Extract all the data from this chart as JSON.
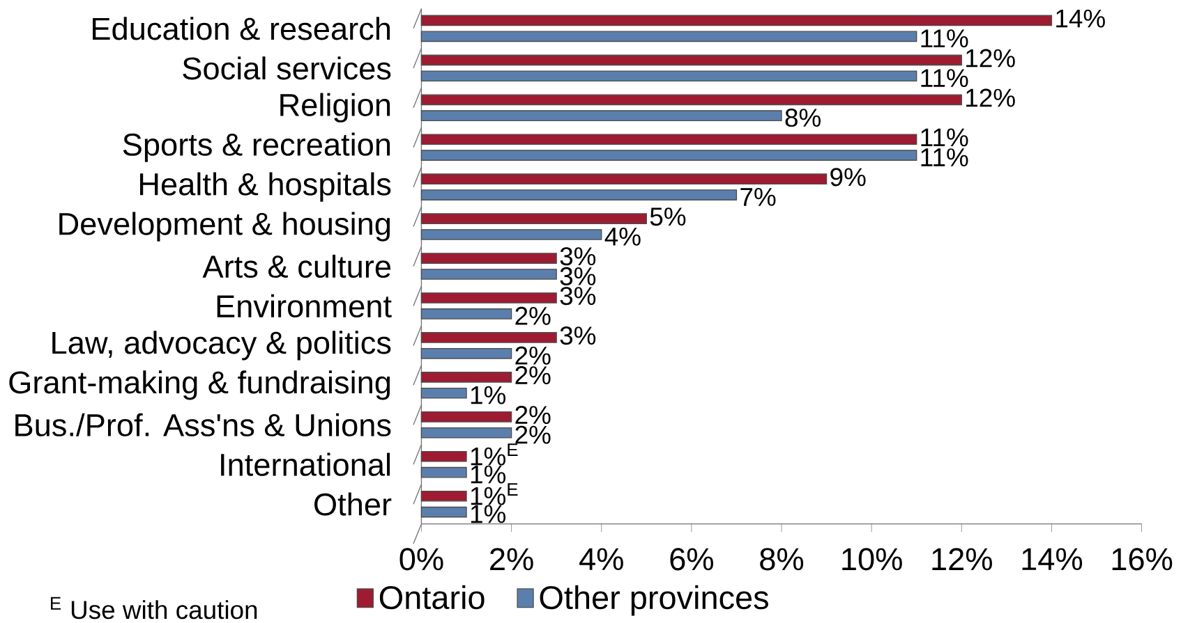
{
  "chart_data": {
    "type": "bar",
    "orientation": "horizontal",
    "categories": [
      "Education & research",
      "Social services",
      "Religion",
      "Sports & recreation",
      "Health & hospitals",
      "Development & housing",
      "Arts & culture",
      "Environment",
      "Law, advocacy & politics",
      "Grant-making & fundraising",
      "Bus./Prof. Ass'ns & Unions",
      "International",
      "Other"
    ],
    "series": [
      {
        "name": "Ontario",
        "color": "#9e1b32",
        "values": [
          14,
          12,
          12,
          11,
          9,
          5,
          3,
          3,
          3,
          2,
          2,
          1,
          1
        ],
        "value_labels": [
          "14%",
          "12%",
          "12%",
          "11%",
          "9%",
          "5%",
          "3%",
          "3%",
          "3%",
          "2%",
          "2%",
          "1%$^{E}$",
          "1%$^{E}$"
        ]
      },
      {
        "name": "Other provinces",
        "color": "#5b7fad",
        "values": [
          11,
          11,
          8,
          11,
          7,
          4,
          3,
          2,
          2,
          1,
          2,
          1,
          1
        ],
        "value_labels": [
          "11%",
          "11%",
          "8%",
          "11%",
          "7%",
          "4%",
          "3%",
          "2%",
          "2%",
          "1%",
          "2%",
          "1%",
          "1%"
        ]
      }
    ],
    "xlim": [
      0,
      16
    ],
    "xticks": [
      {
        "value": 0,
        "label": "0%"
      },
      {
        "value": 2,
        "label": "2%"
      },
      {
        "value": 4,
        "label": "4%"
      },
      {
        "value": 6,
        "label": "6%"
      },
      {
        "value": 8,
        "label": "8%"
      },
      {
        "value": 10,
        "label": "10%"
      },
      {
        "value": 12,
        "label": "12%"
      },
      {
        "value": 14,
        "label": "14%"
      },
      {
        "value": 16,
        "label": "16%"
      }
    ],
    "legend": "bottom",
    "grid": false,
    "annotations": [
      "$^{E}$ Use with caution"
    ]
  }
}
